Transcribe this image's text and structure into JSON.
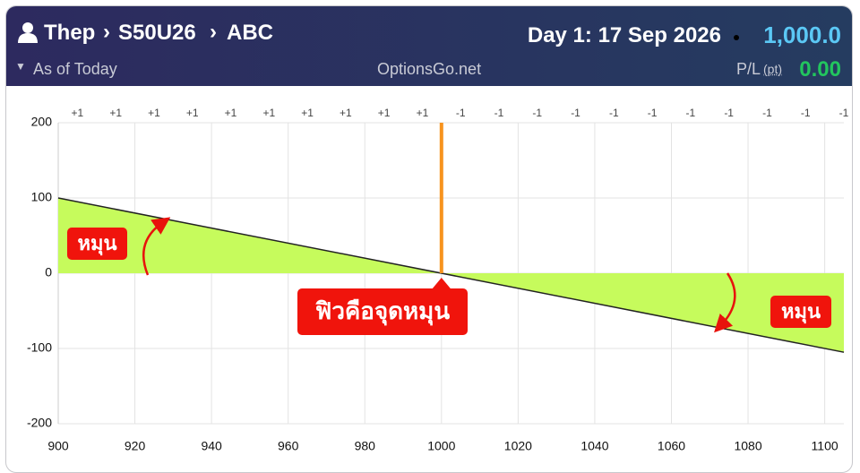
{
  "header": {
    "breadcrumb": [
      "Thep",
      "S50U26",
      "ABC"
    ],
    "day": "Day 1: 17 Sep 2026",
    "price": "1,000.0",
    "as_of": "As of Today",
    "site": "OptionsGo.net",
    "pl_label": "P/L",
    "pl_unit": "(pt)",
    "pl_value": "0.00"
  },
  "chart_data": {
    "type": "line",
    "series": [
      {
        "x": [
          900,
          1105
        ],
        "values": [
          100,
          -105
        ],
        "color": "#222222",
        "fill": "#c6fb5c"
      }
    ],
    "spot": 1000,
    "spot_color": "#f7931e",
    "xlim": [
      900,
      1105
    ],
    "ylim": [
      -200,
      200
    ],
    "xticks": [
      900,
      920,
      940,
      960,
      980,
      1000,
      1020,
      1040,
      1060,
      1080,
      1100
    ],
    "yticks": [
      -200,
      -100,
      0,
      100,
      200
    ],
    "grid": true,
    "position_labels": {
      "x": [
        905,
        915,
        925,
        935,
        945,
        955,
        965,
        975,
        985,
        995,
        1005,
        1015,
        1025,
        1035,
        1045,
        1055,
        1065,
        1075,
        1085,
        1095,
        1105
      ],
      "labels": [
        "+1",
        "+1",
        "+1",
        "+1",
        "+1",
        "+1",
        "+1",
        "+1",
        "+1",
        "+1",
        "-1",
        "-1",
        "-1",
        "-1",
        "-1",
        "-1",
        "-1",
        "-1",
        "-1",
        "-1",
        "-1"
      ]
    },
    "annotations": [
      "หมุน",
      "ฟิวคือจุดหมุน",
      "หมุน"
    ]
  }
}
